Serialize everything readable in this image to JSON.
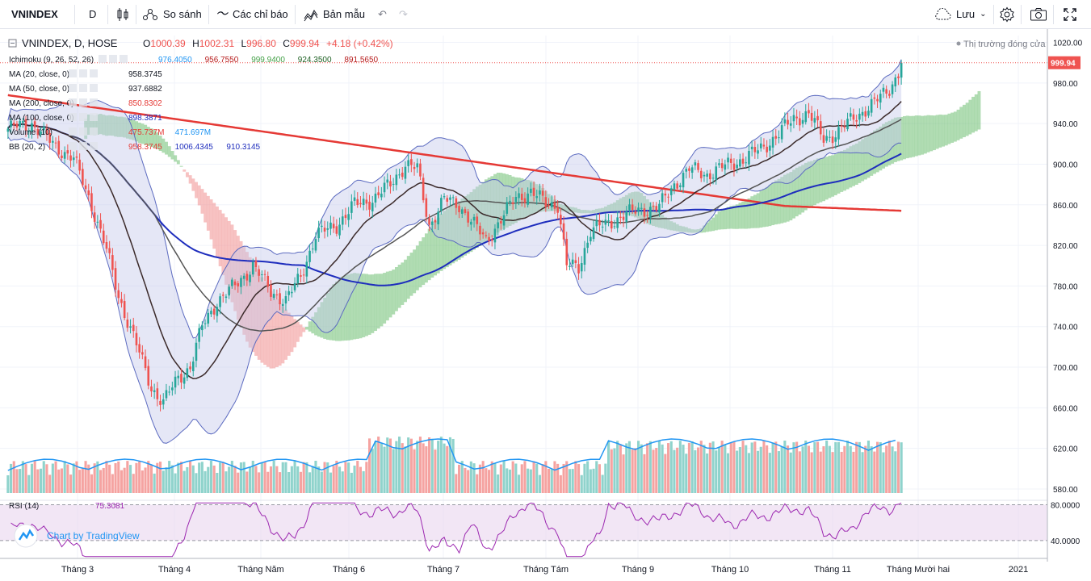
{
  "toolbar": {
    "symbol": "VNINDEX",
    "interval": "D",
    "compare_label": "So sánh",
    "indicators_label": "Các chỉ báo",
    "templates_label": "Bản mẫu",
    "save_label": "Lưu"
  },
  "header": {
    "title": "VNINDEX, D, HOSE",
    "o_label": "O",
    "o": "1000.39",
    "h_label": "H",
    "h": "1002.31",
    "l_label": "L",
    "l": "996.80",
    "c_label": "C",
    "c": "999.94",
    "change": "+4.18 (+0.42%)",
    "market_status": "Thị trường đóng cửa"
  },
  "indicators": [
    {
      "label": "Ichimoku (9, 26, 52, 26)",
      "values": [
        "976.4050",
        "956.7550",
        "999.9400",
        "924.3500",
        "891.5650"
      ],
      "colors": [
        "#2196f3",
        "#b71c1c",
        "#43a047",
        "#1b5e20",
        "#b71c1c"
      ]
    },
    {
      "label": "MA (20, close, 0)",
      "values": [
        "958.3745"
      ],
      "colors": [
        "#131722"
      ]
    },
    {
      "label": "MA (50, close, 0)",
      "values": [
        "937.6882"
      ],
      "colors": [
        "#131722"
      ]
    },
    {
      "label": "MA (200, close, 0)",
      "values": [
        "850.8302"
      ],
      "colors": [
        "#e53935"
      ]
    },
    {
      "label": "MA (100, close, 0)",
      "values": [
        "898.3871"
      ],
      "colors": [
        "#1e2dbd"
      ]
    },
    {
      "label": "Volume (10)",
      "values": [
        "475.737M",
        "471.697M"
      ],
      "colors": [
        "#e53935",
        "#2196f3"
      ]
    },
    {
      "label": "BB (20, 2)",
      "values": [
        "958.3745",
        "1006.4345",
        "910.3145"
      ],
      "colors": [
        "#e53935",
        "#1e2dbd",
        "#1e2dbd"
      ]
    }
  ],
  "rsi": {
    "label": "RSI (14)",
    "value": "75.3081",
    "levels": [
      "80.0000",
      "40.0000"
    ]
  },
  "branding": "Chart by TradingView",
  "last_price_tag": "999.94",
  "colors": {
    "up": "#26a69a",
    "down": "#ef5350",
    "ma200": "#e53935",
    "ma100": "#1e2dbd",
    "ma_dark": "#3b2a2a",
    "bb_fill": "#c5c9ec",
    "cloud_green": "#7bc47f",
    "cloud_red": "#f29a9a",
    "rsi_fill": "#e9d6ee"
  },
  "chart_data": {
    "type": "candlestick",
    "price_axis": [
      "1020.00",
      "980.00",
      "940.00",
      "900.00",
      "860.00",
      "820.00",
      "780.00",
      "740.00",
      "700.00",
      "660.00",
      "620.00",
      "580.00"
    ],
    "ylim": [
      576,
      1022
    ],
    "time_axis": [
      "Tháng 3",
      "Tháng 4",
      "Tháng Năm",
      "Tháng 6",
      "Tháng 7",
      "Tháng Tám",
      "Tháng 9",
      "Tháng 10",
      "Tháng 11",
      "Tháng Mười hai",
      "2021"
    ],
    "close_path": [
      [
        0,
        935
      ],
      [
        8,
        940
      ],
      [
        15,
        920
      ],
      [
        22,
        905
      ],
      [
        28,
        860
      ],
      [
        33,
        815
      ],
      [
        37,
        770
      ],
      [
        42,
        730
      ],
      [
        48,
        680
      ],
      [
        52,
        665
      ],
      [
        57,
        690
      ],
      [
        61,
        700
      ],
      [
        65,
        740
      ],
      [
        70,
        765
      ],
      [
        76,
        780
      ],
      [
        82,
        800
      ],
      [
        88,
        775
      ],
      [
        93,
        765
      ],
      [
        98,
        790
      ],
      [
        103,
        830
      ],
      [
        110,
        840
      ],
      [
        116,
        860
      ],
      [
        122,
        865
      ],
      [
        128,
        880
      ],
      [
        133,
        900
      ],
      [
        137,
        895
      ],
      [
        141,
        840
      ],
      [
        146,
        865
      ],
      [
        151,
        860
      ],
      [
        156,
        840
      ],
      [
        160,
        825
      ],
      [
        165,
        845
      ],
      [
        170,
        868
      ],
      [
        175,
        872
      ],
      [
        180,
        862
      ],
      [
        184,
        860
      ],
      [
        187,
        800
      ],
      [
        191,
        798
      ],
      [
        195,
        835
      ],
      [
        200,
        840
      ],
      [
        206,
        850
      ],
      [
        212,
        855
      ],
      [
        218,
        858
      ],
      [
        223,
        880
      ],
      [
        228,
        895
      ],
      [
        234,
        890
      ],
      [
        240,
        898
      ],
      [
        246,
        905
      ],
      [
        252,
        915
      ],
      [
        258,
        930
      ],
      [
        263,
        945
      ],
      [
        268,
        950
      ],
      [
        273,
        925
      ],
      [
        278,
        932
      ],
      [
        284,
        948
      ],
      [
        290,
        960
      ],
      [
        295,
        975
      ],
      [
        300,
        999.94
      ]
    ],
    "n_bars": 300
  }
}
